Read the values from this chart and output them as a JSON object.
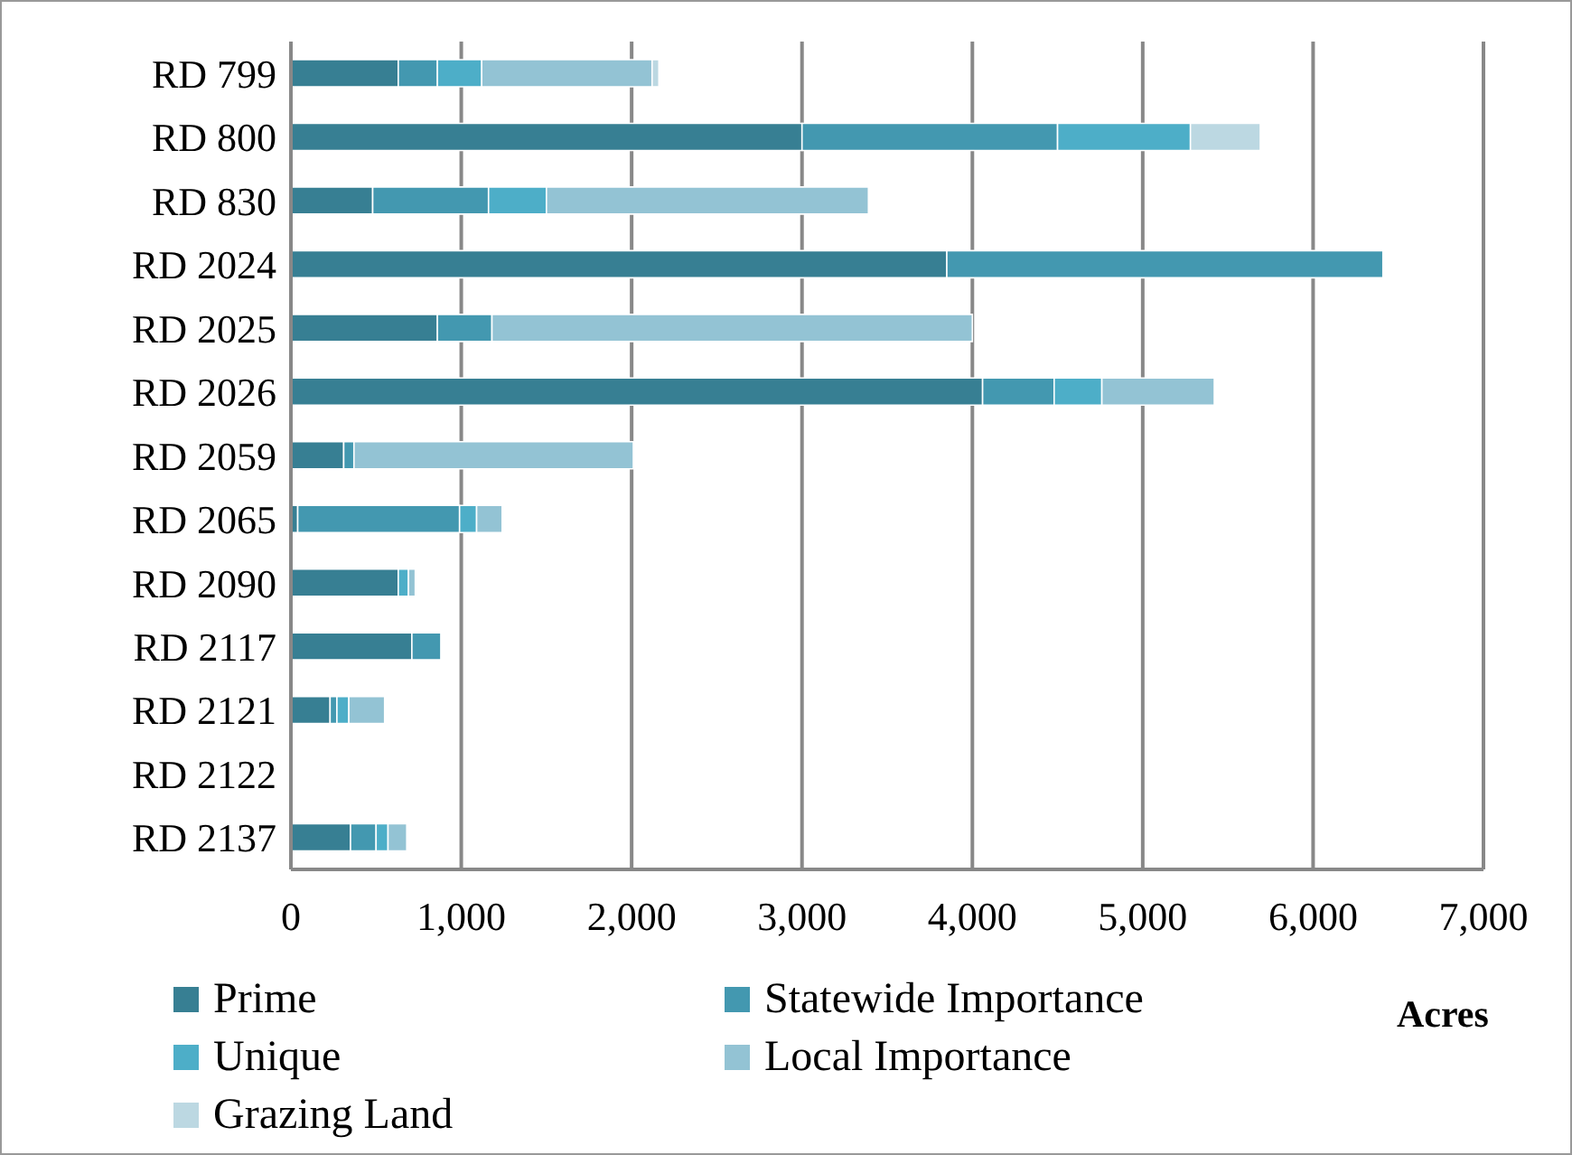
{
  "chart_data": {
    "type": "bar",
    "orientation": "horizontal",
    "stacked": true,
    "xlabel": "Acres",
    "categories": [
      "RD 799",
      "RD 800",
      "RD 830",
      "RD 2024",
      "RD 2025",
      "RD 2026",
      "RD 2059",
      "RD 2065",
      "RD 2090",
      "RD 2117",
      "RD 2121",
      "RD 2122",
      "RD 2137"
    ],
    "series": [
      {
        "name": "Prime",
        "color": "#377f93",
        "values": [
          630,
          3000,
          480,
          3850,
          860,
          4060,
          310,
          40,
          630,
          710,
          230,
          0,
          350
        ]
      },
      {
        "name": "Statewide Importance",
        "color": "#4398b0",
        "values": [
          230,
          1500,
          680,
          2560,
          320,
          420,
          60,
          950,
          0,
          170,
          40,
          0,
          150
        ]
      },
      {
        "name": "Unique",
        "color": "#4daec8",
        "values": [
          260,
          780,
          340,
          0,
          0,
          280,
          0,
          100,
          60,
          0,
          70,
          0,
          70
        ]
      },
      {
        "name": "Local Importance",
        "color": "#93c3d4",
        "values": [
          1000,
          0,
          1890,
          0,
          2820,
          660,
          1640,
          150,
          40,
          0,
          210,
          0,
          110
        ]
      },
      {
        "name": "Grazing Land",
        "color": "#bcd8e2",
        "values": [
          40,
          410,
          0,
          0,
          0,
          0,
          0,
          0,
          0,
          0,
          0,
          0,
          0
        ]
      }
    ],
    "xlim": [
      0,
      7000
    ],
    "xticks": [
      0,
      {
        "value": 1000,
        "label": "1,000"
      },
      {
        "value": 2000,
        "label": "2,000"
      },
      {
        "value": 3000,
        "label": "3,000"
      },
      {
        "value": 4000,
        "label": "4,000"
      },
      {
        "value": 5000,
        "label": "5,000"
      },
      {
        "value": 6000,
        "label": "6,000"
      },
      {
        "value": 7000,
        "label": "7,000"
      }
    ],
    "grid": "x",
    "legend": "bottom"
  }
}
